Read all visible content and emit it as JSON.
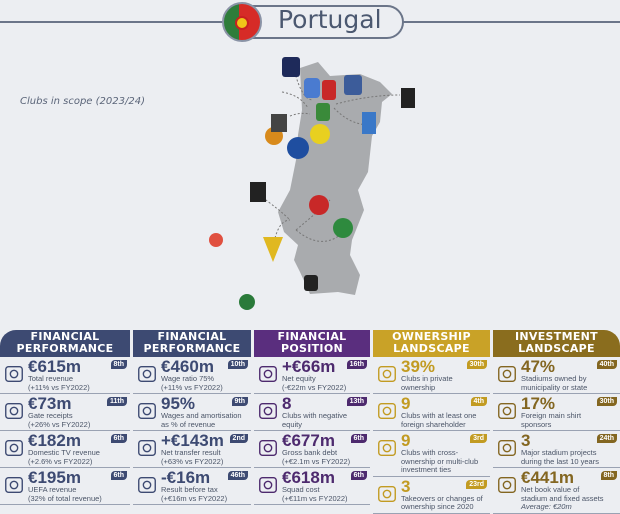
{
  "header": {
    "title": "Portugal",
    "flag_icon": "portugal-flag-icon"
  },
  "map": {
    "caption": "Clubs in scope (2023/24)",
    "land_color": "#a9abae"
  },
  "colors": {
    "navy": "#3d4a72",
    "purple": "#5a2e7e",
    "gold": "#c9a227",
    "brown": "#8a6d1e"
  },
  "columns": [
    {
      "title_1": "FINANCIAL",
      "title_2": "PERFORMANCE",
      "rows": [
        {
          "icon": "coins-icon",
          "value": "€615m",
          "rank": "8th",
          "line1": "Total revenue",
          "line2": "(+11% vs FY2022)"
        },
        {
          "icon": "tickets-icon",
          "value": "€73m",
          "rank": "11th",
          "line1": "Gate receipts",
          "line2": "(+26% vs FY2022)"
        },
        {
          "icon": "tv-icon",
          "value": "€182m",
          "rank": "6th",
          "line1": "Domestic TV revenue",
          "line2": "(+2.6% vs FY2022)"
        },
        {
          "icon": "pie-money-icon",
          "value": "€195m",
          "rank": "6th",
          "line1": "UEFA revenue",
          "line2": "(32% of total revenue)"
        }
      ]
    },
    {
      "title_1": "FINANCIAL",
      "title_2": "PERFORMANCE",
      "rows": [
        {
          "icon": "scales-icon",
          "value": "€460m",
          "rank": "10th",
          "line1": "Wage ratio 75%",
          "line2": "(+11% vs FY2022)"
        },
        {
          "icon": "hand-money-icon",
          "value": "95%",
          "rank": "9th",
          "line1": "Wages and amortisation",
          "line2": "as % of revenue"
        },
        {
          "icon": "document-icon",
          "value": "+€143m",
          "rank": "2nd",
          "line1": "Net transfer result",
          "line2": "(+63% vs FY2022)"
        },
        {
          "icon": "tax-chart-icon",
          "value": "-€16m",
          "rank": "46th",
          "line1": "Result before tax",
          "line2": "(+€16m vs FY2022)"
        }
      ]
    },
    {
      "title_1": "FINANCIAL",
      "title_2": "POSITION",
      "rows": [
        {
          "icon": "money-bag-icon",
          "value": "+€66m",
          "rank": "16th",
          "line1": "Net equity",
          "line2": "(-€22m vs FY2022)"
        },
        {
          "icon": "down-arrow-money-icon",
          "value": "8",
          "rank": "13th",
          "line1": "Clubs with negative",
          "line2": "equity"
        },
        {
          "icon": "bank-icon",
          "value": "€677m",
          "rank": "6th",
          "line1": "Gross bank debt",
          "line2": "(+€2.1m vs FY2022)"
        },
        {
          "icon": "shirt-money-icon",
          "value": "€618m",
          "rank": "6th",
          "line1": "Squad cost",
          "line2": "(+€11m vs FY2022)"
        }
      ]
    },
    {
      "title_1": "OWNERSHIP",
      "title_2": "LANDSCAPE",
      "rows": [
        {
          "icon": "shield-hand-icon",
          "value": "39%",
          "rank": "30th",
          "line1": "Clubs in private",
          "line2": "ownership"
        },
        {
          "icon": "globe-people-icon",
          "value": "9",
          "rank": "4th",
          "line1": "Clubs with at least one",
          "line2": "foreign shareholder"
        },
        {
          "icon": "people-cycle-icon",
          "value": "9",
          "rank": "3rd",
          "line1": "Clubs with cross-",
          "line2": "ownership or multi-club",
          "line3": "investment ties"
        },
        {
          "icon": "players-icon",
          "value": "3",
          "rank": "23rd",
          "line1": "Takeovers or changes of",
          "line2": "ownership since 2020"
        }
      ]
    },
    {
      "title_1": "INVESTMENT",
      "title_2": "LANDSCAPE",
      "rows": [
        {
          "icon": "stadium-icon",
          "value": "47%",
          "rank": "40th",
          "line1": "Stadiums owned by",
          "line2": "municipality or state"
        },
        {
          "icon": "shirt-icon",
          "value": "17%",
          "rank": "30th",
          "line1": "Foreign main shirt",
          "line2": "sponsors"
        },
        {
          "icon": "crane-icon",
          "value": "3",
          "rank": "24th",
          "line1": "Major stadium projects",
          "line2": "during the last 10 years"
        },
        {
          "icon": "document-chart-icon",
          "value": "€441m",
          "rank": "8th",
          "line1": "Net book value of",
          "line2": "stadium and fixed assets",
          "line3": "Average: €20m"
        }
      ]
    }
  ]
}
